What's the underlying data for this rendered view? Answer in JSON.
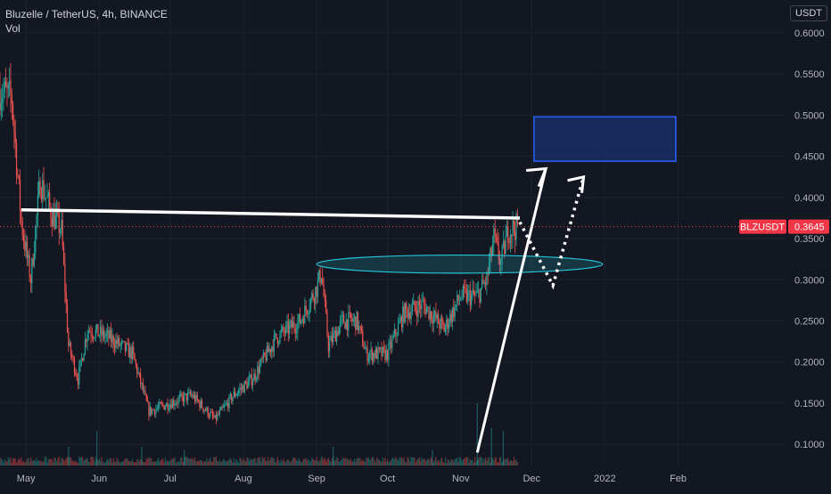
{
  "legend": {
    "title": "Bluzelle / TetherUS, 4h, BINANCE",
    "vol_label": "Vol"
  },
  "price_scale": {
    "currency": "USDT"
  },
  "symbol_tag": {
    "symbol": "BLZUSDT",
    "price": "0.3645"
  },
  "colors": {
    "background": "#131722",
    "grid": "#1e222d",
    "up": "#26a69a",
    "down": "#ef5350",
    "axis_text": "#b2b5be",
    "tag_bg": "#f23645",
    "zone_fill": "#1e3a8a",
    "zone_stroke": "#2962ff",
    "ellipse": "#26c6da",
    "annotation": "#ffffff"
  },
  "chart_data": {
    "type": "candlestick",
    "ylim": [
      0.045,
      0.64
    ],
    "y_ticks": [
      "0.6000",
      "0.5500",
      "0.5000",
      "0.4500",
      "0.4000",
      "0.3500",
      "0.3000",
      "0.2500",
      "0.2000",
      "0.1500",
      "0.1000"
    ],
    "x_ticks": [
      "May",
      "Jun",
      "Jul",
      "Aug",
      "Sep",
      "Oct",
      "Nov",
      "Dec",
      "2022",
      "Feb"
    ],
    "last_price": 0.3645,
    "close_path": [
      {
        "x": "2021-04-20",
        "y": 0.53
      },
      {
        "x": "2021-04-25",
        "y": 0.52
      },
      {
        "x": "2021-04-29",
        "y": 0.37
      },
      {
        "x": "2021-05-03",
        "y": 0.3
      },
      {
        "x": "2021-05-07",
        "y": 0.42
      },
      {
        "x": "2021-05-12",
        "y": 0.38
      },
      {
        "x": "2021-05-16",
        "y": 0.36
      },
      {
        "x": "2021-05-19",
        "y": 0.22
      },
      {
        "x": "2021-05-23",
        "y": 0.18
      },
      {
        "x": "2021-05-27",
        "y": 0.24
      },
      {
        "x": "2021-06-05",
        "y": 0.23
      },
      {
        "x": "2021-06-15",
        "y": 0.21
      },
      {
        "x": "2021-06-22",
        "y": 0.14
      },
      {
        "x": "2021-07-01",
        "y": 0.15
      },
      {
        "x": "2021-07-10",
        "y": 0.16
      },
      {
        "x": "2021-07-20",
        "y": 0.13
      },
      {
        "x": "2021-07-28",
        "y": 0.16
      },
      {
        "x": "2021-08-05",
        "y": 0.18
      },
      {
        "x": "2021-08-15",
        "y": 0.23
      },
      {
        "x": "2021-08-25",
        "y": 0.25
      },
      {
        "x": "2021-09-01",
        "y": 0.29
      },
      {
        "x": "2021-09-03",
        "y": 0.31
      },
      {
        "x": "2021-09-06",
        "y": 0.22
      },
      {
        "x": "2021-09-12",
        "y": 0.25
      },
      {
        "x": "2021-09-18",
        "y": 0.25
      },
      {
        "x": "2021-09-22",
        "y": 0.21
      },
      {
        "x": "2021-10-01",
        "y": 0.21
      },
      {
        "x": "2021-10-08",
        "y": 0.26
      },
      {
        "x": "2021-10-16",
        "y": 0.27
      },
      {
        "x": "2021-10-25",
        "y": 0.24
      },
      {
        "x": "2021-11-01",
        "y": 0.28
      },
      {
        "x": "2021-11-08",
        "y": 0.28
      },
      {
        "x": "2021-11-12",
        "y": 0.3
      },
      {
        "x": "2021-11-15",
        "y": 0.35
      },
      {
        "x": "2021-11-18",
        "y": 0.32
      },
      {
        "x": "2021-11-21",
        "y": 0.36
      },
      {
        "x": "2021-11-25",
        "y": 0.3645
      }
    ],
    "volume_spikes": [
      {
        "x": "2021-05-19",
        "v": 0.3
      },
      {
        "x": "2021-05-31",
        "v": 0.55
      },
      {
        "x": "2021-06-19",
        "v": 0.3
      },
      {
        "x": "2021-07-07",
        "v": 0.25
      },
      {
        "x": "2021-09-08",
        "v": 0.3
      },
      {
        "x": "2021-10-20",
        "v": 0.25
      },
      {
        "x": "2021-11-08",
        "v": 1.0
      },
      {
        "x": "2021-11-14",
        "v": 0.6
      },
      {
        "x": "2021-11-19",
        "v": 0.55
      }
    ],
    "drawings": {
      "resistance_line": {
        "from": {
          "x": "2021-04-29",
          "y": 0.385
        },
        "to": {
          "x": "2021-11-26",
          "y": 0.375
        }
      },
      "support_ellipse": {
        "x_from": "2021-09-01",
        "x_to": "2021-12-31",
        "y_center": 0.319,
        "y_half_height": 0.011
      },
      "target_zone": {
        "x_from": "2021-12-02",
        "x_to": "2022-01-31",
        "y_from": 0.444,
        "y_to": 0.498
      },
      "trend_arrow": {
        "from": {
          "x": "2021-11-08",
          "y": 0.09
        },
        "to": {
          "x": "2021-12-07",
          "y": 0.435
        }
      },
      "dotted_down": {
        "from": {
          "x": "2021-11-26",
          "y": 0.37
        },
        "to": {
          "x": "2021-12-10",
          "y": 0.293
        }
      },
      "dotted_up": {
        "from": {
          "x": "2021-12-10",
          "y": 0.293
        },
        "to": {
          "x": "2021-12-23",
          "y": 0.425
        }
      }
    }
  }
}
